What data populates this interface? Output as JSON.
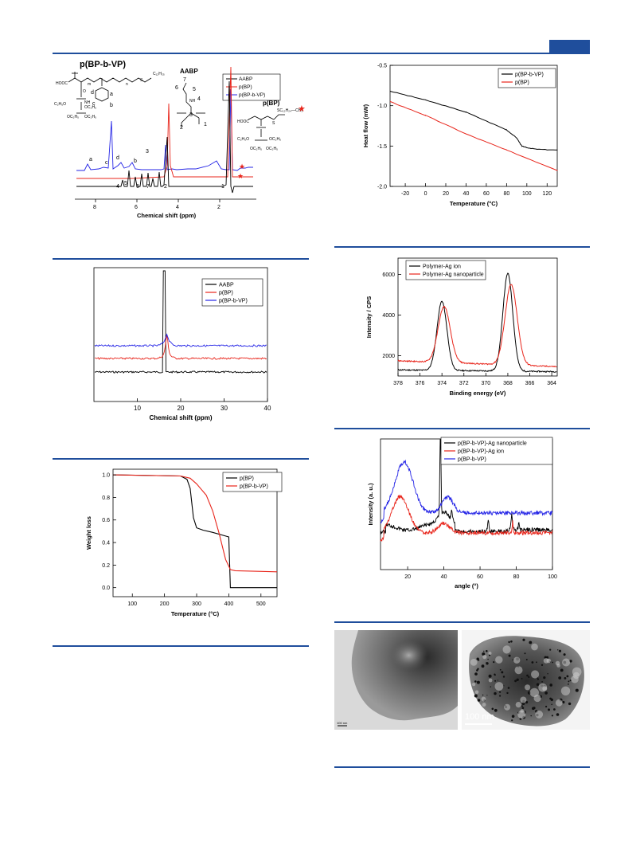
{
  "nmr1": {
    "labels": {
      "poly1": "p(BP-b-VP)",
      "mono": "AABP",
      "poly2": "p(BP)",
      "xlabel": "Chemical shift (ppm)"
    },
    "legend": [
      "AABP",
      "p(BP)",
      "p(BP-b-VP)"
    ],
    "ticks": [
      "8",
      "6",
      "4",
      "2"
    ],
    "peak_labels_top": [
      "a",
      "c",
      "d",
      "b",
      "3",
      "2",
      "1"
    ],
    "peak_labels_bottom": [
      "4",
      "5",
      "6",
      "7"
    ],
    "chem_labels": [
      "7",
      "6",
      "5",
      "4",
      "3",
      "2",
      "1",
      "a",
      "b",
      "c",
      "d"
    ],
    "chem_text": [
      "HOOC",
      "HOOC",
      "NH",
      "NH",
      "O",
      "C₁₂H₂₅",
      "S",
      "S",
      "SC₁₂H₂₄—CH₃",
      "C₂H₅O",
      "OC₂H₅",
      "OC₂H₅",
      "OC₂H₅",
      "m",
      "n"
    ]
  },
  "nmr2": {
    "chart_data": {
      "type": "line",
      "xlabel": "Chemical shift (ppm)",
      "xticks": [
        "10",
        "20",
        "30",
        "40"
      ],
      "xlim": [
        0,
        40
      ],
      "series": [
        {
          "name": "AABP",
          "peak_at": 16.2,
          "baseline": "bottom"
        },
        {
          "name": "p(BP)",
          "peak_at": 16.8,
          "baseline": "middle"
        },
        {
          "name": "p(BP-b-VP)",
          "peak_at": 16.8,
          "baseline": "top"
        }
      ]
    }
  },
  "tga": {
    "chart_data": {
      "type": "line",
      "xlabel": "Temperature (°C)",
      "ylabel": "Weight loss",
      "xticks": [
        "100",
        "200",
        "300",
        "400",
        "500"
      ],
      "yticks": [
        "1.0",
        "0.8",
        "0.6",
        "0.4",
        "0.2",
        "0.0"
      ],
      "xlim": [
        40,
        550
      ],
      "ylim": [
        -0.08,
        1.05
      ],
      "series": [
        {
          "name": "p(BP)",
          "x": [
            40,
            250,
            270,
            280,
            290,
            300,
            320,
            350,
            400,
            405,
            550
          ],
          "y": [
            1.0,
            0.99,
            0.96,
            0.88,
            0.62,
            0.53,
            0.51,
            0.49,
            0.45,
            0.0,
            0.0
          ]
        },
        {
          "name": "p(BP-b-VP)",
          "x": [
            40,
            250,
            280,
            300,
            330,
            350,
            370,
            390,
            405,
            420,
            550
          ],
          "y": [
            1.0,
            0.99,
            0.97,
            0.92,
            0.82,
            0.68,
            0.48,
            0.25,
            0.16,
            0.15,
            0.14
          ]
        }
      ]
    }
  },
  "dsc": {
    "chart_data": {
      "type": "line",
      "xlabel": "Temperature (°C)",
      "ylabel": "Heat flow (mW)",
      "xticks": [
        "-20",
        "0",
        "20",
        "40",
        "60",
        "80",
        "100",
        "120"
      ],
      "yticks": [
        "-0.5",
        "-1.0",
        "-1.5",
        "-2.0"
      ],
      "xlim": [
        -35,
        130
      ],
      "ylim": [
        -2.0,
        -0.5
      ],
      "series": [
        {
          "name": "p(BP-b-VP)",
          "x": [
            -35,
            0,
            40,
            80,
            90,
            95,
            100,
            110,
            130
          ],
          "y": [
            -0.82,
            -0.93,
            -1.08,
            -1.3,
            -1.4,
            -1.5,
            -1.52,
            -1.54,
            -1.55
          ]
        },
        {
          "name": "p(BP)",
          "x": [
            -35,
            0,
            40,
            80,
            130
          ],
          "y": [
            -0.95,
            -1.12,
            -1.35,
            -1.55,
            -1.8
          ]
        }
      ]
    }
  },
  "xps": {
    "chart_data": {
      "type": "line",
      "xlabel": "Binding energy (eV)",
      "ylabel": "Intensity / CPS",
      "xticks": [
        "378",
        "376",
        "374",
        "372",
        "370",
        "368",
        "366",
        "364"
      ],
      "yticks": [
        "6000",
        "4000",
        "2000"
      ],
      "xlim": [
        378,
        363.5
      ],
      "ylim": [
        1000,
        6800
      ],
      "series": [
        {
          "name": "Polymer-Ag ion",
          "baseline": 1300,
          "peaks": [
            {
              "x": 374.0,
              "h": 4700,
              "w": 0.45
            },
            {
              "x": 368.0,
              "h": 6100,
              "w": 0.45
            }
          ]
        },
        {
          "name": "Polymer-Ag nanoparticle",
          "baseline": 1750,
          "peaks": [
            {
              "x": 373.8,
              "h": 4500,
              "w": 0.55
            },
            {
              "x": 367.7,
              "h": 5700,
              "w": 0.55
            }
          ]
        }
      ]
    }
  },
  "xrd": {
    "chart_data": {
      "type": "line",
      "xlabel": "angle (°)",
      "ylabel": "Intensity (a. u.)",
      "xticks": [
        "20",
        "40",
        "60",
        "80",
        "100"
      ],
      "xlim": [
        5,
        100
      ],
      "series": [
        {
          "name": "p(BP-b-VP)-Ag nanoparticle"
        },
        {
          "name": "p(BP-b-VP)-Ag ion"
        },
        {
          "name": "p(BP-b-VP)"
        }
      ]
    }
  },
  "tem": {
    "left_scale": "100 nm",
    "right_scale": "100 nm"
  },
  "colors": {
    "accent": "#1f4e9c",
    "black": "#000000",
    "red": "#e8251b",
    "blue": "#2525e6"
  }
}
